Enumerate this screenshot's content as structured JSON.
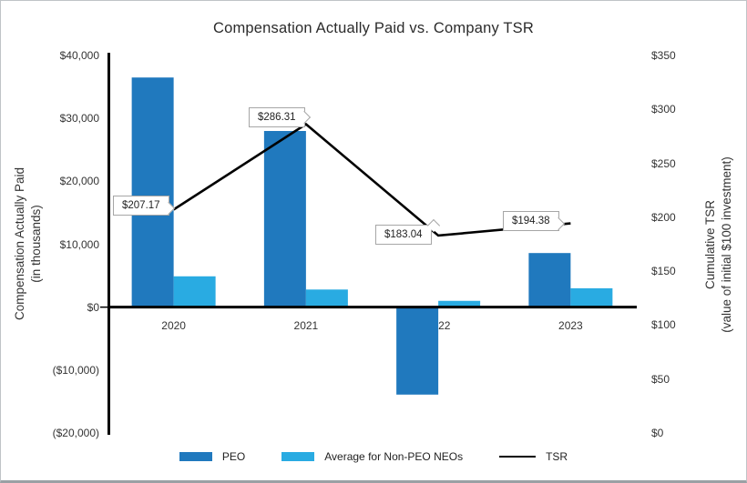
{
  "chart_data": {
    "type": "combo_bar_line",
    "title": "Compensation Actually Paid vs. Company TSR",
    "categories": [
      "2020",
      "2021",
      "2022",
      "2023"
    ],
    "series": [
      {
        "name": "PEO",
        "type": "bar",
        "axis": "left",
        "color": "#2079BE",
        "values": [
          36500,
          28000,
          -13900,
          8600
        ]
      },
      {
        "name": "Average for Non-PEO NEOs",
        "type": "bar",
        "axis": "left",
        "color": "#29ABE2",
        "values": [
          4900,
          2800,
          1000,
          3000
        ]
      },
      {
        "name": "TSR",
        "type": "line",
        "axis": "right",
        "color": "#000000",
        "values": [
          207.17,
          286.31,
          183.04,
          194.38
        ],
        "point_labels": [
          "$207.17",
          "$286.31",
          "$183.04",
          "$194.38"
        ]
      }
    ],
    "left_axis": {
      "title_line1": "Compensation Actually Paid",
      "title_line2": "(in thousands)",
      "tick_values": [
        40000,
        30000,
        20000,
        10000,
        0,
        -10000,
        -20000
      ],
      "tick_labels": [
        "$40,000",
        "$30,000",
        "$20,000",
        "$10,000",
        "$0",
        "($10,000)",
        "($20,000)"
      ],
      "range": [
        -20000,
        40000
      ]
    },
    "right_axis": {
      "title_line1": "Cumulative  TSR",
      "title_line2": "(value of initial $100 investment)",
      "tick_values": [
        350,
        300,
        250,
        200,
        150,
        100,
        50,
        0
      ],
      "tick_labels": [
        "$350",
        "$300",
        "$250",
        "$200",
        "$150",
        "$100",
        "$50",
        "$0"
      ],
      "range": [
        0,
        350
      ]
    },
    "legend_position": "bottom",
    "grid": "off"
  }
}
